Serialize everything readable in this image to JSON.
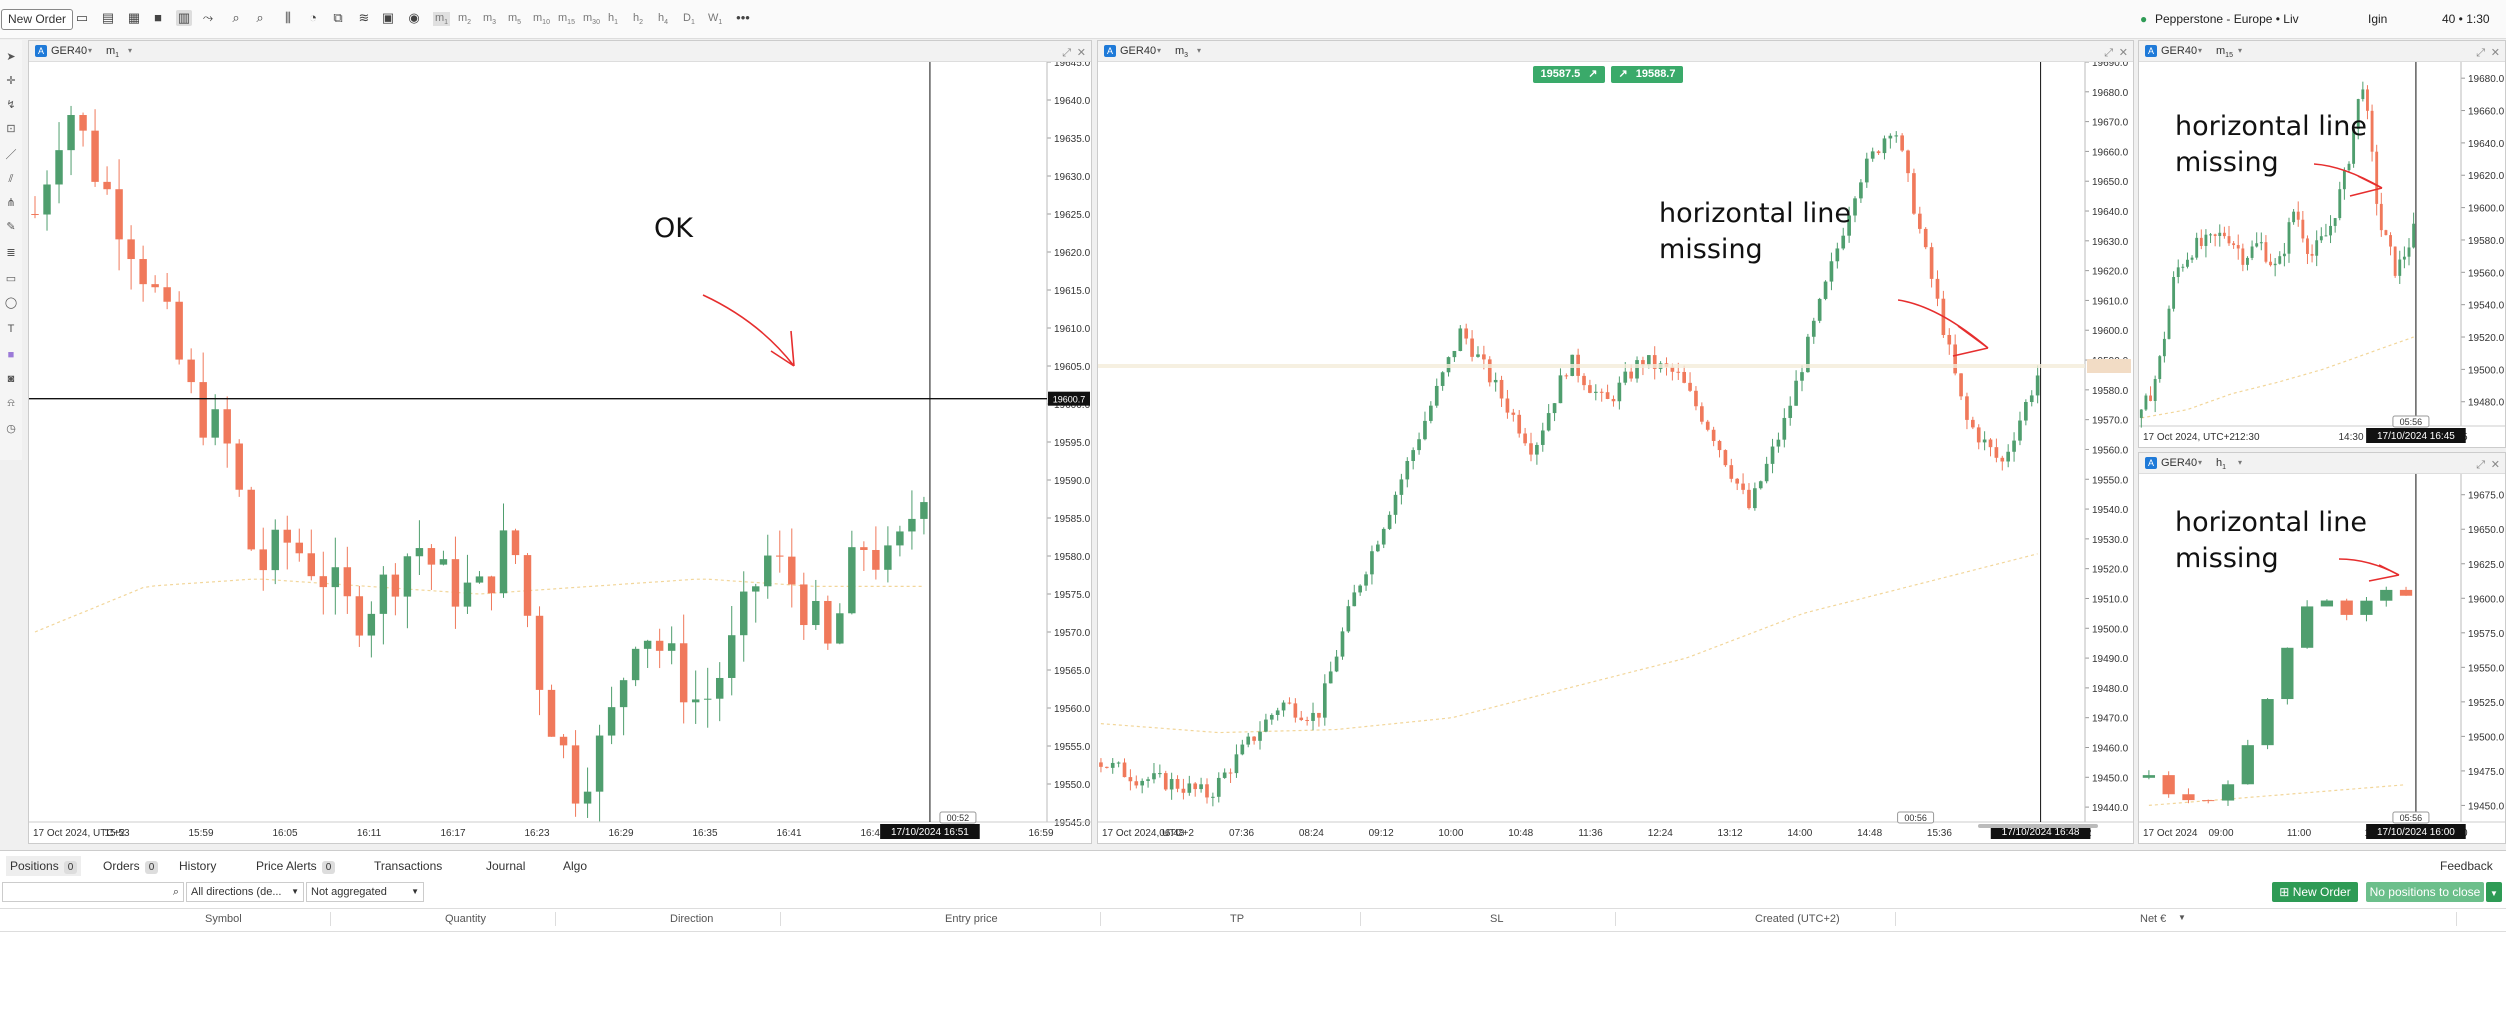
{
  "toolbar": {
    "new_order": "New Order",
    "timeframes": [
      {
        "base": "m",
        "sub": "1"
      },
      {
        "base": "m",
        "sub": "2"
      },
      {
        "base": "m",
        "sub": "3"
      },
      {
        "base": "m",
        "sub": "5"
      },
      {
        "base": "m",
        "sub": "10"
      },
      {
        "base": "m",
        "sub": "15"
      },
      {
        "base": "m",
        "sub": "30"
      },
      {
        "base": "h",
        "sub": "1"
      },
      {
        "base": "h",
        "sub": "2"
      },
      {
        "base": "h",
        "sub": "4"
      },
      {
        "base": "D",
        "sub": "1"
      },
      {
        "base": "W",
        "sub": "1"
      }
    ],
    "more": "•••",
    "broker": "Pepperstone - Europe • Liv",
    "user": "Igin",
    "clock": "40 • 1:30"
  },
  "colors": {
    "bull": "#4f9e6e",
    "bear": "#f0795b",
    "annotation_arrow": "#e62e2e",
    "accent": "#1f7ad8"
  },
  "charts": [
    {
      "id": "left",
      "symbol": "GER40",
      "tf_base": "m",
      "tf_sub": "1",
      "y_labels": [
        "19645.0",
        "19640.0",
        "19635.0",
        "19630.0",
        "19625.0",
        "19620.0",
        "19615.0",
        "19610.0",
        "19605.0",
        "19600.0",
        "19595.0",
        "19590.0",
        "19585.0",
        "19580.0",
        "19575.0",
        "19570.0",
        "19565.0",
        "19560.0",
        "19555.0",
        "19550.0",
        "19545.0"
      ],
      "y_range": [
        19545,
        19645
      ],
      "x_labels": [
        "17 Oct 2024, UTC+2",
        "15:53",
        "15:59",
        "16:05",
        "16:11",
        "16:17",
        "16:23",
        "16:29",
        "16:35",
        "16:41",
        "16:47",
        "16:53",
        "16:59"
      ],
      "x_highlight": "17/10/2024 16:51",
      "countdown": "00:52",
      "hline_label": "19600.7",
      "hline_value": 19600.7,
      "annotation": "OK"
    },
    {
      "id": "middle",
      "symbol": "GER40",
      "tf_base": "m",
      "tf_sub": "3",
      "buttons": [
        {
          "price": "19587.5",
          "icon": "↗"
        },
        {
          "price": "19588.7",
          "icon": "↗"
        }
      ],
      "y_labels": [
        "19690.0",
        "19680.0",
        "19670.0",
        "19660.0",
        "19650.0",
        "19640.0",
        "19630.0",
        "19620.0",
        "19610.0",
        "19600.0",
        "19590.0",
        "19580.0",
        "19570.0",
        "19560.0",
        "19550.0",
        "19540.0",
        "19530.0",
        "19520.0",
        "19510.0",
        "19500.0",
        "19490.0",
        "19480.0",
        "19470.0",
        "19460.0",
        "19450.0",
        "19440.0"
      ],
      "y_range": [
        19435,
        19690
      ],
      "x_labels": [
        "17 Oct 2024, UTC+2",
        "06:48",
        "07:36",
        "08:24",
        "09:12",
        "10:00",
        "10:48",
        "11:36",
        "12:24",
        "13:12",
        "14:00",
        "14:48",
        "15:36",
        "16:24",
        "17:12"
      ],
      "x_highlight": "17/10/2024 16:48",
      "countdown": "00:56",
      "annotation_line1": "horizontal line",
      "annotation_line2": "missing"
    },
    {
      "id": "topright",
      "symbol": "GER40",
      "tf_base": "m",
      "tf_sub": "15",
      "y_labels": [
        "19680.0",
        "19660.0",
        "19640.0",
        "19620.0",
        "19600.0",
        "19580.0",
        "19560.0",
        "19540.0",
        "19520.0",
        "19500.0",
        "19480.0"
      ],
      "y_range": [
        19465,
        19690
      ],
      "x_labels": [
        "17 Oct 2024, UTC+2",
        "12:30",
        "14:30",
        "16:45"
      ],
      "x_highlight": "17/10/2024 16:45",
      "countdown": "05:56",
      "annotation_line1": "horizontal line",
      "annotation_line2": "missing"
    },
    {
      "id": "bottomright",
      "symbol": "GER40",
      "tf_base": "h",
      "tf_sub": "1",
      "y_labels": [
        "19675.0",
        "19650.0",
        "19625.0",
        "19600.0",
        "19575.0",
        "19550.0",
        "19525.0",
        "19500.0",
        "19475.0",
        "19450.0"
      ],
      "y_range": [
        19438,
        19690
      ],
      "x_labels": [
        "17 Oct 2024",
        "09:00",
        "11:00",
        "13:00",
        "16:00"
      ],
      "x_highlight": "17/10/2024 16:00",
      "countdown": "05:56",
      "annotation_line1": "horizontal line",
      "annotation_line2": "missing"
    }
  ],
  "bottom": {
    "tabs": [
      {
        "label": "Positions",
        "count": "0"
      },
      {
        "label": "Orders",
        "count": "0"
      },
      {
        "label": "History",
        "count": ""
      },
      {
        "label": "Price Alerts",
        "count": "0"
      },
      {
        "label": "Transactions",
        "count": ""
      },
      {
        "label": "Journal",
        "count": ""
      },
      {
        "label": "Algo",
        "count": ""
      }
    ],
    "feedback": "Feedback",
    "filter_direction": "All directions (de...",
    "filter_aggregate": "Not aggregated",
    "new_order": "New Order",
    "close_all": "No positions to close",
    "columns": [
      "Symbol",
      "Quantity",
      "Direction",
      "Entry price",
      "TP",
      "SL",
      "Created (UTC+2)",
      "Net €"
    ]
  }
}
